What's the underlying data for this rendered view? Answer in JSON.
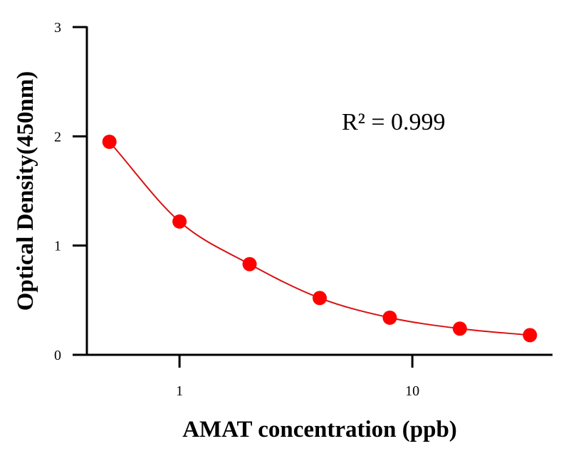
{
  "chart_data": {
    "type": "scatter",
    "x_scale": "log",
    "xlabel": "AMAT concentration (ppb)",
    "ylabel": "Optical Density(450nm)",
    "xlim": [
      0.4,
      40
    ],
    "ylim": [
      0,
      3
    ],
    "x_ticks": [
      1,
      10
    ],
    "x_tick_labels": [
      "1",
      "10"
    ],
    "y_ticks": [
      0,
      1,
      2,
      3
    ],
    "y_tick_labels": [
      "0",
      "1",
      "2",
      "3"
    ],
    "grid": false,
    "legend": "none",
    "annotation": "R² = 0.999",
    "series": [
      {
        "x": [
          0.5,
          1,
          2,
          4,
          8,
          16,
          32
        ],
        "y": [
          1.95,
          1.22,
          0.83,
          0.52,
          0.34,
          0.24,
          0.18
        ],
        "color": "#ff0000",
        "marker": "circle",
        "fit_line_color": "#d81010"
      }
    ]
  }
}
